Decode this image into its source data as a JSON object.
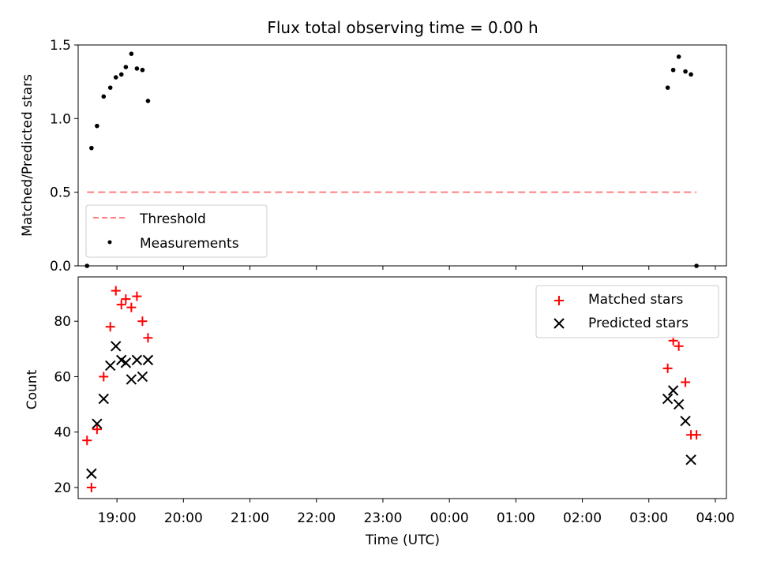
{
  "chart_data": [
    {
      "type": "line+scatter",
      "title": "Flux total observing time = 0.00 h",
      "ylabel": "Matched/Predicted stars",
      "xlabel": "",
      "xlim": [
        "18:25",
        "04:10"
      ],
      "ylim": [
        0,
        1.5
      ],
      "yticks": [
        0.0,
        0.5,
        1.0,
        1.5
      ],
      "ytick_labels": [
        "0.0",
        "0.5",
        "1.0",
        "1.5"
      ],
      "grid": false,
      "legend_position": "lower-left",
      "threshold": {
        "name": "Threshold",
        "color": "#ff7f7f",
        "style": "dashed",
        "x": [
          "18:33",
          "03:43"
        ],
        "y": [
          0.5,
          0.5
        ]
      },
      "measurements": {
        "name": "Measurements",
        "color": "#000000",
        "points": [
          {
            "x": "18:33",
            "y": 0.0
          },
          {
            "x": "18:37",
            "y": 0.8
          },
          {
            "x": "18:42",
            "y": 0.95
          },
          {
            "x": "18:48",
            "y": 1.15
          },
          {
            "x": "18:54",
            "y": 1.21
          },
          {
            "x": "18:59",
            "y": 1.28
          },
          {
            "x": "19:04",
            "y": 1.3
          },
          {
            "x": "19:08",
            "y": 1.35
          },
          {
            "x": "19:13",
            "y": 1.44
          },
          {
            "x": "19:18",
            "y": 1.34
          },
          {
            "x": "19:23",
            "y": 1.33
          },
          {
            "x": "19:28",
            "y": 1.12
          },
          {
            "x": "03:17",
            "y": 1.21
          },
          {
            "x": "03:22",
            "y": 1.33
          },
          {
            "x": "03:27",
            "y": 1.42
          },
          {
            "x": "03:33",
            "y": 1.32
          },
          {
            "x": "03:38",
            "y": 1.3
          },
          {
            "x": "03:43",
            "y": 0.0
          }
        ]
      }
    },
    {
      "type": "scatter",
      "title": "",
      "ylabel": "Count",
      "xlabel": "Time (UTC)",
      "xlim": [
        "18:25",
        "04:10"
      ],
      "ylim": [
        16,
        96
      ],
      "yticks": [
        20,
        40,
        60,
        80
      ],
      "xticks": [
        "19:00",
        "20:00",
        "21:00",
        "22:00",
        "23:00",
        "00:00",
        "01:00",
        "02:00",
        "03:00",
        "04:00"
      ],
      "grid": false,
      "legend_position": "upper-right",
      "series": [
        {
          "name": "Matched stars",
          "marker": "plus",
          "color": "#ff0000",
          "points": [
            {
              "x": "18:33",
              "y": 37
            },
            {
              "x": "18:37",
              "y": 20
            },
            {
              "x": "18:42",
              "y": 41
            },
            {
              "x": "18:48",
              "y": 60
            },
            {
              "x": "18:54",
              "y": 78
            },
            {
              "x": "18:59",
              "y": 91
            },
            {
              "x": "19:04",
              "y": 86
            },
            {
              "x": "19:08",
              "y": 88
            },
            {
              "x": "19:13",
              "y": 85
            },
            {
              "x": "19:18",
              "y": 89
            },
            {
              "x": "19:23",
              "y": 80
            },
            {
              "x": "19:28",
              "y": 74
            },
            {
              "x": "03:17",
              "y": 63
            },
            {
              "x": "03:22",
              "y": 73
            },
            {
              "x": "03:27",
              "y": 71
            },
            {
              "x": "03:33",
              "y": 58
            },
            {
              "x": "03:38",
              "y": 39
            },
            {
              "x": "03:43",
              "y": 39
            }
          ]
        },
        {
          "name": "Predicted stars",
          "marker": "x",
          "color": "#000000",
          "points": [
            {
              "x": "18:37",
              "y": 25
            },
            {
              "x": "18:42",
              "y": 43
            },
            {
              "x": "18:48",
              "y": 52
            },
            {
              "x": "18:54",
              "y": 64
            },
            {
              "x": "18:59",
              "y": 71
            },
            {
              "x": "19:04",
              "y": 66
            },
            {
              "x": "19:08",
              "y": 65
            },
            {
              "x": "19:13",
              "y": 59
            },
            {
              "x": "19:18",
              "y": 66
            },
            {
              "x": "19:23",
              "y": 60
            },
            {
              "x": "19:28",
              "y": 66
            },
            {
              "x": "03:17",
              "y": 52
            },
            {
              "x": "03:22",
              "y": 55
            },
            {
              "x": "03:27",
              "y": 50
            },
            {
              "x": "03:33",
              "y": 44
            },
            {
              "x": "03:38",
              "y": 30
            }
          ]
        }
      ]
    }
  ]
}
